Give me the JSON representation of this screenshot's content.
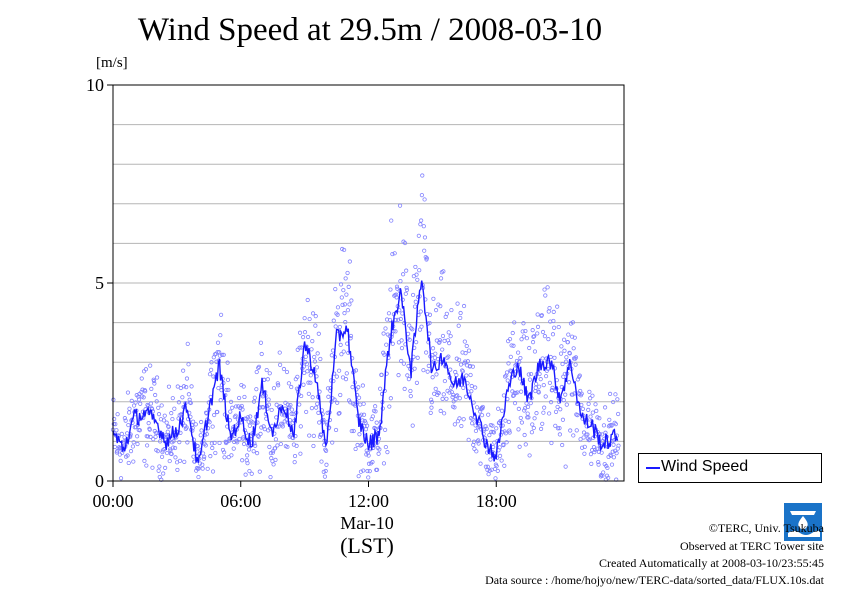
{
  "chart_data": {
    "type": "scatter",
    "title": "Wind Speed at 29.5m / 2008-03-10",
    "ylabel": "[m/s]",
    "xlabel": "(LST)",
    "x_date_label": "Mar-10",
    "x_tick_labels": [
      "00:00",
      "06:00",
      "12:00",
      "18:00"
    ],
    "x_ticks_hours": [
      0,
      6,
      12,
      18
    ],
    "xlim_hours": [
      0,
      24
    ],
    "ylim": [
      0,
      10
    ],
    "y_ticks": [
      0,
      5,
      10
    ],
    "y_tick_labels": [
      "0",
      "5",
      "10"
    ],
    "grid": true,
    "legend_position": "right, below plot",
    "series": [
      {
        "name": "Wind Speed",
        "color": "#1a1aff",
        "marker_color": "#8080ff",
        "x_hours": [
          0,
          0.5,
          1,
          1.5,
          2,
          2.5,
          3,
          3.5,
          4,
          4.5,
          5,
          5.5,
          6,
          6.5,
          7,
          7.5,
          8,
          8.5,
          9,
          9.5,
          10,
          10.5,
          11,
          11.5,
          12,
          12.5,
          13,
          13.5,
          14,
          14.5,
          15,
          15.5,
          16,
          16.5,
          17,
          17.5,
          18,
          18.5,
          19,
          19.5,
          20,
          20.5,
          21,
          21.5,
          22,
          22.5,
          23,
          23.5
        ],
        "values": [
          1.2,
          0.8,
          1.6,
          1.7,
          1.5,
          1.0,
          1.3,
          1.9,
          0.3,
          1.8,
          2.9,
          1.1,
          1.6,
          0.9,
          2.4,
          1.2,
          2.0,
          1.1,
          3.5,
          2.7,
          0.8,
          3.6,
          3.9,
          1.6,
          0.9,
          1.2,
          3.6,
          4.8,
          2.8,
          5.2,
          2.7,
          3.2,
          2.4,
          2.6,
          1.8,
          1.0,
          0.6,
          2.2,
          3.0,
          2.0,
          2.9,
          3.1,
          2.1,
          3.0,
          1.6,
          1.4,
          0.9,
          1.1
        ]
      }
    ]
  },
  "credits": {
    "copyright": "©TERC, Univ. Tsukuba",
    "site": "Observed at TERC Tower site",
    "created": "Created Automatically at 2008-03-10/23:55:45",
    "source": "Data source : /home/hojyo/new/TERC-data/sorted_data/FLUX.10s.dat"
  },
  "logo": {
    "name": "terc-logo",
    "color": "#1a73c8"
  }
}
